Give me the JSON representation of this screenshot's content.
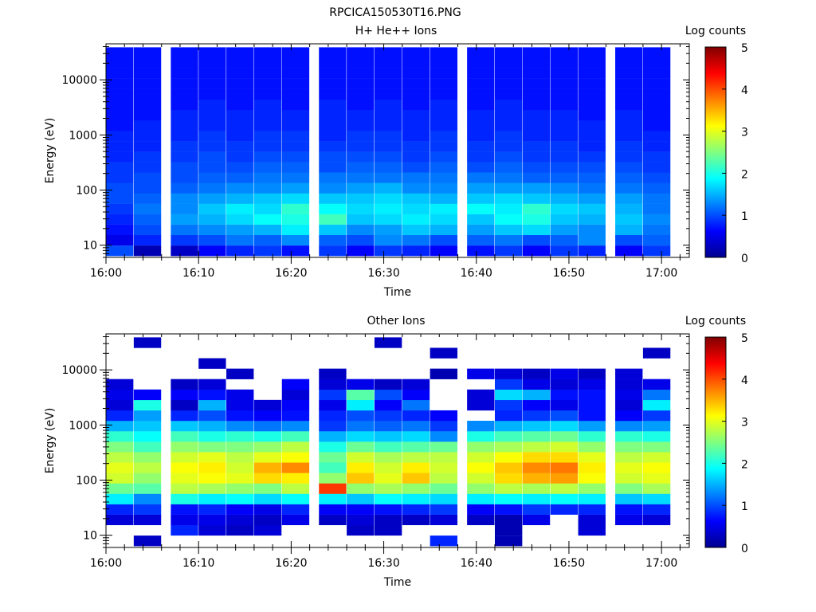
{
  "figure": {
    "title": "RPCICA150530T16.PNG",
    "colors": {
      "background": "#ffffff",
      "axis": "#000000",
      "colormap": [
        "#00008f",
        "#0000ff",
        "#0080ff",
        "#00ffff",
        "#80ff80",
        "#ffff00",
        "#ff8000",
        "#ff0000",
        "#800000"
      ]
    }
  },
  "chart_data": [
    {
      "type": "heatmap",
      "title": "H+ He++ Ions",
      "xlabel": "Time",
      "ylabel": "Energy (eV)",
      "xlim": [
        "16:00",
        "17:03"
      ],
      "ylim": [
        6,
        45000
      ],
      "y_scale": "log",
      "x_ticks": [
        "16:00",
        "16:10",
        "16:20",
        "16:30",
        "16:40",
        "16:50",
        "17:00"
      ],
      "y_ticks": [
        "10",
        "100",
        "1000",
        "10000"
      ],
      "grid": false,
      "time_bins": [
        "16:00",
        "16:03",
        "16:07",
        "16:10",
        "16:13",
        "16:16",
        "16:19",
        "16:23",
        "16:26",
        "16:29",
        "16:32",
        "16:35",
        "16:39",
        "16:42",
        "16:45",
        "16:48",
        "16:51",
        "16:55",
        "16:58"
      ],
      "energy_bins": [
        7.9,
        12.3,
        19.0,
        29.4,
        45.4,
        70.2,
        108.5,
        167.7,
        259.2,
        400.6,
        619.2,
        957.1,
        1479.3,
        2286.5,
        3534.1,
        5462.5,
        8443.1,
        13050.1,
        20170.9,
        31177.0
      ],
      "colorbar": {
        "label": "Log counts",
        "range": [
          0,
          5
        ],
        "ticks": [
          "0",
          "1",
          "2",
          "3",
          "4",
          "5"
        ]
      },
      "log_counts": [
        [
          1.0,
          0.2,
          0.3,
          0.6,
          0.8,
          0.9,
          0.7,
          0.9,
          0.6,
          0.9,
          0.8,
          0.6,
          0.7,
          0.9,
          0.6,
          0.9,
          0.8,
          0.6,
          0.9
        ],
        [
          0.5,
          0.8,
          0.9,
          1.0,
          1.2,
          1.1,
          1.3,
          1.1,
          1.0,
          1.3,
          1.2,
          1.0,
          1.1,
          1.2,
          1.0,
          1.1,
          1.3,
          1.0,
          1.1
        ],
        [
          0.7,
          1.0,
          1.2,
          1.3,
          1.4,
          1.5,
          1.8,
          1.6,
          1.3,
          1.4,
          1.6,
          1.5,
          1.4,
          1.6,
          1.7,
          1.4,
          1.3,
          1.5,
          1.2
        ],
        [
          0.8,
          1.1,
          1.4,
          1.5,
          1.7,
          1.9,
          2.0,
          2.2,
          1.6,
          1.7,
          1.8,
          1.7,
          1.6,
          1.9,
          2.0,
          1.6,
          1.5,
          1.6,
          1.3
        ],
        [
          0.9,
          1.2,
          1.3,
          1.6,
          1.8,
          1.7,
          2.1,
          1.9,
          1.7,
          1.8,
          1.7,
          1.8,
          1.9,
          1.8,
          2.1,
          1.7,
          1.6,
          1.5,
          1.2
        ],
        [
          1.0,
          1.1,
          1.3,
          1.4,
          1.5,
          1.6,
          1.7,
          1.6,
          1.6,
          1.7,
          1.6,
          1.5,
          1.6,
          1.7,
          1.6,
          1.5,
          1.4,
          1.4,
          1.2
        ],
        [
          1.0,
          1.0,
          1.1,
          1.2,
          1.3,
          1.3,
          1.4,
          1.3,
          1.4,
          1.5,
          1.3,
          1.3,
          1.4,
          1.4,
          1.4,
          1.3,
          1.2,
          1.2,
          1.1
        ],
        [
          0.9,
          1.0,
          1.0,
          1.1,
          1.1,
          1.2,
          1.2,
          1.2,
          1.2,
          1.2,
          1.2,
          1.2,
          1.2,
          1.2,
          1.1,
          1.1,
          1.1,
          1.1,
          1.0
        ],
        [
          0.9,
          0.9,
          1.0,
          1.0,
          1.0,
          1.1,
          1.1,
          1.0,
          1.1,
          1.1,
          1.0,
          1.1,
          1.0,
          1.1,
          1.0,
          1.0,
          1.0,
          1.0,
          0.9
        ],
        [
          0.8,
          0.9,
          0.9,
          1.0,
          0.9,
          1.0,
          1.0,
          1.0,
          1.0,
          1.0,
          0.9,
          1.0,
          0.9,
          1.0,
          0.9,
          0.9,
          0.9,
          0.9,
          0.9
        ],
        [
          0.8,
          0.8,
          0.9,
          0.9,
          0.9,
          0.9,
          0.9,
          0.9,
          0.9,
          0.9,
          0.9,
          0.9,
          0.9,
          0.9,
          0.9,
          0.9,
          0.8,
          0.9,
          0.8
        ],
        [
          0.8,
          0.8,
          0.8,
          0.9,
          0.8,
          0.9,
          0.9,
          0.8,
          0.9,
          0.9,
          0.8,
          0.9,
          0.8,
          0.9,
          0.8,
          0.8,
          0.8,
          0.8,
          0.8
        ],
        [
          0.7,
          0.8,
          0.8,
          0.8,
          0.8,
          0.8,
          0.8,
          0.8,
          0.8,
          0.8,
          0.8,
          0.8,
          0.8,
          0.8,
          0.8,
          0.8,
          0.8,
          0.8,
          0.7
        ],
        [
          0.7,
          0.7,
          0.8,
          0.8,
          0.8,
          0.8,
          0.8,
          0.8,
          0.8,
          0.8,
          0.8,
          0.8,
          0.8,
          0.8,
          0.8,
          0.8,
          0.7,
          0.8,
          0.7
        ],
        [
          0.7,
          0.7,
          0.7,
          0.8,
          0.7,
          0.8,
          0.7,
          0.8,
          0.7,
          0.8,
          0.7,
          0.8,
          0.7,
          0.8,
          0.7,
          0.7,
          0.7,
          0.7,
          0.7
        ],
        [
          0.7,
          0.7,
          0.7,
          0.7,
          0.7,
          0.7,
          0.7,
          0.7,
          0.7,
          0.7,
          0.7,
          0.7,
          0.7,
          0.7,
          0.7,
          0.7,
          0.7,
          0.7,
          0.7
        ],
        [
          0.7,
          0.7,
          0.7,
          0.7,
          0.7,
          0.7,
          0.7,
          0.7,
          0.7,
          0.7,
          0.7,
          0.7,
          0.7,
          0.7,
          0.7,
          0.7,
          0.7,
          0.7,
          0.7
        ],
        [
          0.7,
          0.7,
          0.7,
          0.7,
          0.7,
          0.7,
          0.7,
          0.7,
          0.7,
          0.7,
          0.7,
          0.7,
          0.7,
          0.7,
          0.7,
          0.7,
          0.7,
          0.7,
          0.7
        ],
        [
          0.7,
          0.7,
          0.7,
          0.7,
          0.7,
          0.7,
          0.7,
          0.7,
          0.7,
          0.7,
          0.7,
          0.7,
          0.7,
          0.7,
          0.7,
          0.7,
          0.7,
          0.7,
          0.7
        ],
        [
          0.7,
          0.7,
          0.7,
          0.7,
          0.7,
          0.7,
          0.7,
          0.7,
          0.7,
          0.7,
          0.7,
          0.7,
          0.7,
          0.7,
          0.7,
          0.7,
          0.7,
          0.7,
          0.7
        ]
      ]
    },
    {
      "type": "heatmap",
      "title": "Other Ions",
      "xlabel": "Time",
      "ylabel": "Energy (eV)",
      "xlim": [
        "16:00",
        "17:03"
      ],
      "ylim": [
        6,
        45000
      ],
      "y_scale": "log",
      "x_ticks": [
        "16:00",
        "16:10",
        "16:20",
        "16:30",
        "16:40",
        "16:50",
        "17:00"
      ],
      "y_ticks": [
        "10",
        "100",
        "1000",
        "10000"
      ],
      "grid": false,
      "time_bins": [
        "16:00",
        "16:03",
        "16:07",
        "16:10",
        "16:13",
        "16:16",
        "16:19",
        "16:23",
        "16:26",
        "16:29",
        "16:32",
        "16:35",
        "16:39",
        "16:42",
        "16:45",
        "16:48",
        "16:51",
        "16:55",
        "16:58"
      ],
      "energy_bins": [
        7.9,
        12.3,
        19.0,
        29.4,
        45.4,
        70.2,
        108.5,
        167.7,
        259.2,
        400.6,
        619.2,
        957.1,
        1479.3,
        2286.5,
        3534.1,
        5462.5,
        8443.1,
        13050.1,
        20170.9,
        31177.0
      ],
      "colorbar": {
        "label": "Log counts",
        "range": [
          0,
          5
        ],
        "ticks": [
          "0",
          "1",
          "2",
          "3",
          "4",
          "5"
        ]
      },
      "log_counts": [
        [
          null,
          0.3,
          null,
          null,
          null,
          null,
          null,
          null,
          null,
          null,
          null,
          0.8,
          null,
          0.2,
          null,
          null,
          null,
          null,
          null
        ],
        [
          null,
          null,
          0.8,
          0.4,
          0.3,
          0.4,
          null,
          null,
          0.3,
          0.3,
          null,
          null,
          null,
          0.2,
          null,
          null,
          0.4,
          null,
          null
        ],
        [
          0.4,
          0.4,
          0.5,
          0.5,
          0.4,
          0.3,
          0.5,
          0.3,
          0.4,
          0.3,
          0.3,
          0.4,
          0.3,
          0.2,
          0.5,
          null,
          0.4,
          0.5,
          0.4
        ],
        [
          0.8,
          0.9,
          0.7,
          0.8,
          0.6,
          0.5,
          0.8,
          0.6,
          0.6,
          0.7,
          0.8,
          0.9,
          0.6,
          0.7,
          0.9,
          0.8,
          0.8,
          0.7,
          0.8
        ],
        [
          1.8,
          1.3,
          2.0,
          1.8,
          1.9,
          1.7,
          1.9,
          1.8,
          1.6,
          1.9,
          1.8,
          1.7,
          1.8,
          1.9,
          1.8,
          1.9,
          1.8,
          1.6,
          1.7
        ],
        [
          2.4,
          2.3,
          2.8,
          2.7,
          2.6,
          2.5,
          2.8,
          4.1,
          2.6,
          2.7,
          2.6,
          2.4,
          2.6,
          2.8,
          2.7,
          2.8,
          2.6,
          2.5,
          2.7
        ],
        [
          2.9,
          2.6,
          3.0,
          3.1,
          3.0,
          3.3,
          3.2,
          2.6,
          3.4,
          3.0,
          3.4,
          2.8,
          2.9,
          3.3,
          3.5,
          3.6,
          3.1,
          2.9,
          3.0
        ],
        [
          3.0,
          2.8,
          3.1,
          3.2,
          2.9,
          3.5,
          3.7,
          2.2,
          3.2,
          2.9,
          3.2,
          2.9,
          3.1,
          3.4,
          3.7,
          3.8,
          3.2,
          3.0,
          3.1
        ],
        [
          2.8,
          2.6,
          2.9,
          3.0,
          2.8,
          3.0,
          3.1,
          2.4,
          2.9,
          2.7,
          2.8,
          2.8,
          2.9,
          3.1,
          3.3,
          3.3,
          3.0,
          2.8,
          2.9
        ],
        [
          2.5,
          2.2,
          2.6,
          2.5,
          2.5,
          2.6,
          2.8,
          2.0,
          2.4,
          2.2,
          2.3,
          2.4,
          2.6,
          2.7,
          2.8,
          2.9,
          2.6,
          2.5,
          2.5
        ],
        [
          2.1,
          1.9,
          2.2,
          2.0,
          2.1,
          2.0,
          2.2,
          1.5,
          1.7,
          1.6,
          1.7,
          1.3,
          2.0,
          2.2,
          2.3,
          2.4,
          2.1,
          2.1,
          2.0
        ],
        [
          1.5,
          1.6,
          1.6,
          1.5,
          1.3,
          1.2,
          1.3,
          0.9,
          1.2,
          1.1,
          1.2,
          0.9,
          1.3,
          1.5,
          1.6,
          1.7,
          1.4,
          1.3,
          1.4
        ],
        [
          0.8,
          1.4,
          0.8,
          1.0,
          0.7,
          0.6,
          0.7,
          0.8,
          1.0,
          0.9,
          0.8,
          0.6,
          null,
          0.8,
          0.9,
          1.0,
          0.7,
          0.6,
          0.9
        ],
        [
          0.4,
          2.0,
          0.3,
          1.5,
          0.5,
          0.4,
          0.6,
          0.5,
          1.8,
          0.6,
          1.2,
          null,
          0.4,
          0.9,
          0.6,
          0.5,
          0.7,
          0.4,
          1.8
        ],
        [
          0.5,
          0.6,
          0.6,
          0.7,
          0.5,
          null,
          0.4,
          0.9,
          2.3,
          1.0,
          0.6,
          null,
          0.4,
          1.7,
          1.5,
          0.7,
          0.7,
          0.5,
          1.2
        ],
        [
          0.4,
          null,
          0.3,
          0.4,
          null,
          null,
          0.6,
          0.4,
          0.5,
          0.3,
          0.4,
          null,
          null,
          0.9,
          0.5,
          0.4,
          0.5,
          0.4,
          0.5
        ],
        [
          null,
          null,
          null,
          null,
          0.3,
          null,
          null,
          0.3,
          null,
          null,
          null,
          0.2,
          0.5,
          0.4,
          0.3,
          0.5,
          0.3,
          0.4,
          null
        ],
        [
          null,
          null,
          null,
          0.3,
          null,
          null,
          null,
          null,
          null,
          null,
          null,
          null,
          null,
          null,
          null,
          null,
          null,
          null,
          null
        ],
        [
          null,
          null,
          null,
          null,
          null,
          null,
          null,
          null,
          null,
          null,
          null,
          0.3,
          null,
          null,
          null,
          null,
          null,
          null,
          0.3
        ],
        [
          null,
          0.3,
          null,
          null,
          null,
          null,
          null,
          null,
          null,
          0.3,
          null,
          null,
          null,
          null,
          null,
          null,
          null,
          null,
          null
        ]
      ]
    }
  ]
}
